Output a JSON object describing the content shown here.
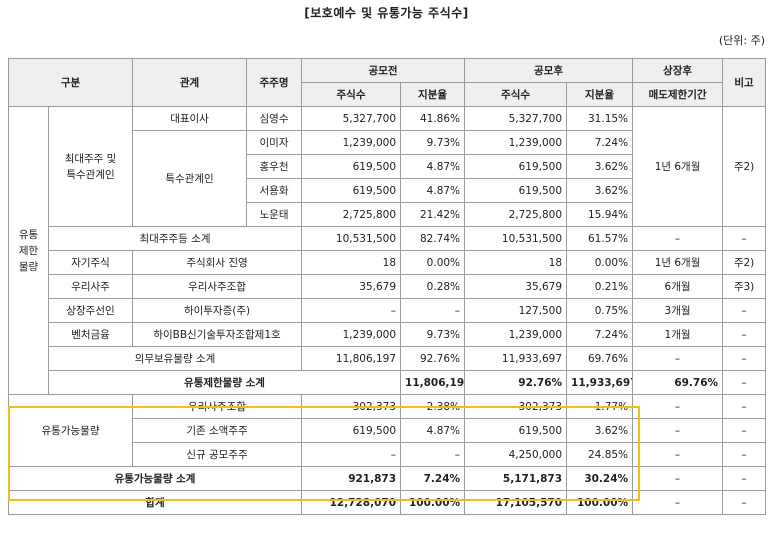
{
  "title": "[보호예수 및 유통가능 주식수]",
  "unit": "(단위: 주)",
  "headers": {
    "category": "구분",
    "relation": "관계",
    "holder": "주주명",
    "pre_ipo": "공모전",
    "post_ipo": "공모후",
    "listing": "상장후",
    "remark": "비고",
    "shares": "주식수",
    "ratio": "지분율",
    "lockup": "매도제한기간"
  },
  "labels": {
    "restricted": "유통\n제한\n물량",
    "major": "최대주주 및\n특수관계인",
    "special": "특수관계인",
    "tradable": "유통가능물량"
  },
  "rows": {
    "r1": {
      "relation": "대표이사",
      "holder": "심영수",
      "pre_shares": "5,327,700",
      "pre_ratio": "41.86%",
      "post_shares": "5,327,700",
      "post_ratio": "31.15%"
    },
    "r2": {
      "holder": "이미자",
      "pre_shares": "1,239,000",
      "pre_ratio": "9.73%",
      "post_shares": "1,239,000",
      "post_ratio": "7.24%"
    },
    "r3": {
      "holder": "홍우천",
      "pre_shares": "619,500",
      "pre_ratio": "4.87%",
      "post_shares": "619,500",
      "post_ratio": "3.62%"
    },
    "r4": {
      "holder": "서용화",
      "pre_shares": "619,500",
      "pre_ratio": "4.87%",
      "post_shares": "619,500",
      "post_ratio": "3.62%"
    },
    "r5": {
      "holder": "노운태",
      "pre_shares": "2,725,800",
      "pre_ratio": "21.42%",
      "post_shares": "2,725,800",
      "post_ratio": "15.94%"
    },
    "major_lockup": "1년 6개월",
    "major_remark": "주2)",
    "subtotal_major": {
      "label": "최대주주등 소계",
      "pre_shares": "10,531,500",
      "pre_ratio": "82.74%",
      "post_shares": "10,531,500",
      "post_ratio": "61.57%",
      "lockup": "–",
      "remark": "–"
    },
    "treasury": {
      "category": "자기주식",
      "relation": "주식회사 진영",
      "pre_shares": "18",
      "pre_ratio": "0.00%",
      "post_shares": "18",
      "post_ratio": "0.00%",
      "lockup": "1년 6개월",
      "remark": "주2)"
    },
    "esop": {
      "category": "우리사주",
      "relation": "우리사주조합",
      "pre_shares": "35,679",
      "pre_ratio": "0.28%",
      "post_shares": "35,679",
      "post_ratio": "0.21%",
      "lockup": "6개월",
      "remark": "주3)"
    },
    "underwriter": {
      "category": "상장주선인",
      "relation": "하이투자증(주)",
      "pre_shares": "–",
      "pre_ratio": "–",
      "post_shares": "127,500",
      "post_ratio": "0.75%",
      "lockup": "3개월",
      "remark": "–"
    },
    "venture": {
      "category": "벤처금융",
      "relation": "하이BB신기술투자조합제1호",
      "pre_shares": "1,239,000",
      "pre_ratio": "9.73%",
      "post_shares": "1,239,000",
      "post_ratio": "7.24%",
      "lockup": "1개월",
      "remark": "–"
    },
    "mandatory": {
      "label": "의무보유물량 소계",
      "pre_shares": "11,806,197",
      "pre_ratio": "92.76%",
      "post_shares": "11,933,697",
      "post_ratio": "69.76%",
      "lockup": "–",
      "remark": "–"
    },
    "restricted_total": {
      "label": "유통제한물량 소계",
      "pre_shares": "11,806,197",
      "pre_ratio": "92.76%",
      "post_shares": "11,933,697",
      "post_ratio": "69.76%",
      "lockup": "–",
      "remark": "–"
    },
    "t1": {
      "relation": "우리사주조합",
      "pre_shares": "302,373",
      "pre_ratio": "2.38%",
      "post_shares": "302,373",
      "post_ratio": "1.77%",
      "lockup": "–",
      "remark": "–"
    },
    "t2": {
      "relation": "기존 소액주주",
      "pre_shares": "619,500",
      "pre_ratio": "4.87%",
      "post_shares": "619,500",
      "post_ratio": "3.62%",
      "lockup": "–",
      "remark": "–"
    },
    "t3": {
      "relation": "신규 공모주주",
      "pre_shares": "–",
      "pre_ratio": "–",
      "post_shares": "4,250,000",
      "post_ratio": "24.85%",
      "lockup": "–",
      "remark": "–"
    },
    "tradable_total": {
      "label": "유통가능물량 소계",
      "pre_shares": "921,873",
      "pre_ratio": "7.24%",
      "post_shares": "5,171,873",
      "post_ratio": "30.24%",
      "lockup": "–",
      "remark": "–"
    },
    "grand_total": {
      "label": "합계",
      "pre_shares": "12,728,070",
      "pre_ratio": "100.00%",
      "post_shares": "17,105,570",
      "post_ratio": "100.00%",
      "lockup": "–",
      "remark": "–"
    }
  },
  "colors": {
    "highlight": "#f2be1b",
    "header_bg": "#efefef",
    "border": "#9a9a9a"
  }
}
